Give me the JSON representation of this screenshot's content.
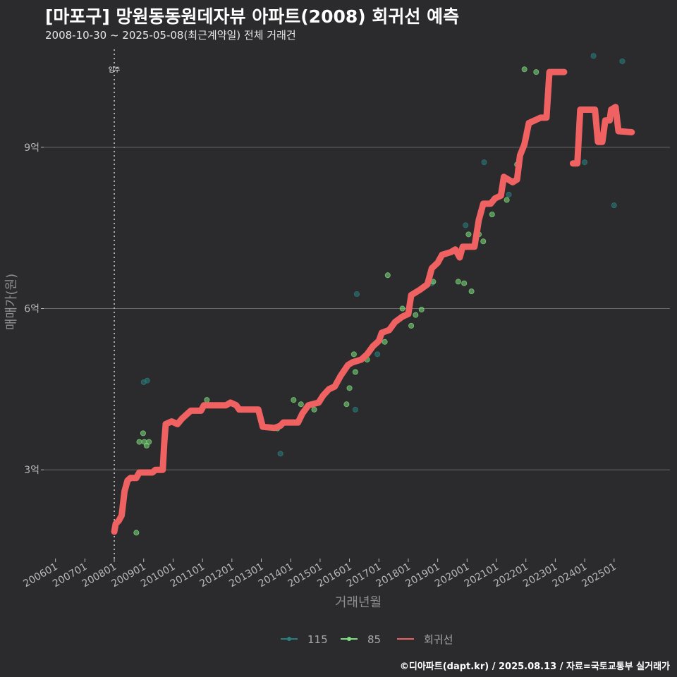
{
  "chart_data": {
    "type": "scatter",
    "title": "[마포구] 망원동동원데자뷰 아파트(2008) 회귀선 예측",
    "subtitle": "2008-10-30 ~ 2025-05-08(최근계약일) 전체 거래건",
    "xlabel": "거래년월",
    "ylabel": "매매가(원)",
    "caption": "©디아파트(dapt.kr) / 2025.08.13 / 자료=국토교통부 실거래가",
    "xlim": [
      2005.6,
      2026.9
    ],
    "ylim": [
      1.35,
      10.9
    ],
    "x_ticks": [
      {
        "v": 2006.0,
        "label": "200601"
      },
      {
        "v": 2007.0,
        "label": "200701"
      },
      {
        "v": 2008.0,
        "label": "200801"
      },
      {
        "v": 2009.0,
        "label": "200901"
      },
      {
        "v": 2010.0,
        "label": "201001"
      },
      {
        "v": 2011.0,
        "label": "201101"
      },
      {
        "v": 2012.0,
        "label": "201201"
      },
      {
        "v": 2013.0,
        "label": "201301"
      },
      {
        "v": 2014.0,
        "label": "201401"
      },
      {
        "v": 2015.0,
        "label": "201501"
      },
      {
        "v": 2016.0,
        "label": "201601"
      },
      {
        "v": 2017.0,
        "label": "201701"
      },
      {
        "v": 2018.0,
        "label": "201801"
      },
      {
        "v": 2019.0,
        "label": "201901"
      },
      {
        "v": 2020.0,
        "label": "202001"
      },
      {
        "v": 2021.0,
        "label": "202101"
      },
      {
        "v": 2022.0,
        "label": "202201"
      },
      {
        "v": 2023.0,
        "label": "202301"
      },
      {
        "v": 2024.0,
        "label": "202401"
      },
      {
        "v": 2025.0,
        "label": "202501"
      }
    ],
    "y_ticks": [
      {
        "v": 3,
        "label": "3억"
      },
      {
        "v": 6,
        "label": "6억"
      },
      {
        "v": 9,
        "label": "9억"
      }
    ],
    "annotation": {
      "x": 2008.0,
      "label": "입주"
    },
    "legend": [
      {
        "name": "115",
        "color": "#2a7f7f"
      },
      {
        "name": "85",
        "color": "#7ee07e"
      },
      {
        "name": "회귀선",
        "color": "#f06262"
      }
    ],
    "series": [
      {
        "name": "115",
        "color": "#2a7f7f",
        "points": [
          [
            2009.0,
            4.63
          ],
          [
            2009.12,
            4.66
          ],
          [
            2016.25,
            6.27
          ],
          [
            2016.2,
            4.12
          ],
          [
            2019.95,
            7.55
          ],
          [
            2020.58,
            8.72
          ],
          [
            2021.42,
            8.12
          ],
          [
            2024.3,
            10.7
          ],
          [
            2025.28,
            10.6
          ],
          [
            2025.0,
            7.92
          ],
          [
            2024.0,
            8.72
          ],
          [
            2018.8,
            6.47
          ],
          [
            2013.65,
            3.3
          ],
          [
            2016.95,
            5.15
          ]
        ]
      },
      {
        "name": "85",
        "color": "#7ee07e",
        "points": [
          [
            2008.75,
            1.83
          ],
          [
            2008.85,
            3.52
          ],
          [
            2008.98,
            3.68
          ],
          [
            2009.02,
            3.52
          ],
          [
            2009.1,
            3.45
          ],
          [
            2009.18,
            3.52
          ],
          [
            2011.15,
            4.3
          ],
          [
            2013.55,
            3.77
          ],
          [
            2014.1,
            4.3
          ],
          [
            2014.35,
            4.22
          ],
          [
            2014.8,
            4.12
          ],
          [
            2015.9,
            4.22
          ],
          [
            2016.0,
            4.52
          ],
          [
            2016.15,
            5.15
          ],
          [
            2016.2,
            4.82
          ],
          [
            2016.6,
            5.05
          ],
          [
            2017.2,
            5.38
          ],
          [
            2017.3,
            6.62
          ],
          [
            2017.8,
            6.0
          ],
          [
            2017.95,
            5.88
          ],
          [
            2018.1,
            5.68
          ],
          [
            2018.25,
            5.88
          ],
          [
            2018.45,
            5.98
          ],
          [
            2018.85,
            6.5
          ],
          [
            2019.7,
            6.5
          ],
          [
            2019.9,
            6.47
          ],
          [
            2020.05,
            7.38
          ],
          [
            2020.15,
            6.32
          ],
          [
            2020.4,
            7.38
          ],
          [
            2020.55,
            7.25
          ],
          [
            2020.85,
            7.75
          ],
          [
            2021.35,
            8.02
          ],
          [
            2021.7,
            8.68
          ],
          [
            2021.95,
            10.45
          ],
          [
            2022.35,
            10.4
          ]
        ]
      },
      {
        "name": "회귀선",
        "color": "#f06262",
        "segments": [
          [
            [
              2008.0,
              1.85
            ],
            [
              2008.05,
              2.0
            ],
            [
              2008.15,
              2.05
            ],
            [
              2008.25,
              2.15
            ],
            [
              2008.35,
              2.6
            ],
            [
              2008.45,
              2.8
            ],
            [
              2008.55,
              2.85
            ],
            [
              2008.75,
              2.85
            ],
            [
              2008.85,
              2.95
            ],
            [
              2009.3,
              2.95
            ],
            [
              2009.4,
              3.0
            ],
            [
              2009.65,
              3.0
            ],
            [
              2009.7,
              3.5
            ],
            [
              2009.75,
              3.85
            ],
            [
              2009.95,
              3.9
            ],
            [
              2010.15,
              3.85
            ],
            [
              2010.3,
              3.95
            ],
            [
              2010.5,
              4.05
            ],
            [
              2010.6,
              4.1
            ],
            [
              2010.95,
              4.1
            ],
            [
              2011.05,
              4.2
            ],
            [
              2011.8,
              4.2
            ],
            [
              2011.95,
              4.25
            ],
            [
              2012.15,
              4.2
            ],
            [
              2012.25,
              4.12
            ],
            [
              2012.9,
              4.12
            ],
            [
              2013.05,
              3.8
            ],
            [
              2013.45,
              3.78
            ],
            [
              2013.65,
              3.82
            ],
            [
              2013.75,
              3.88
            ],
            [
              2014.25,
              3.88
            ],
            [
              2014.4,
              4.05
            ],
            [
              2014.6,
              4.2
            ],
            [
              2014.95,
              4.25
            ],
            [
              2015.1,
              4.38
            ],
            [
              2015.3,
              4.5
            ],
            [
              2015.5,
              4.55
            ],
            [
              2015.7,
              4.75
            ],
            [
              2015.95,
              4.95
            ],
            [
              2016.1,
              5.0
            ],
            [
              2016.4,
              5.05
            ],
            [
              2016.6,
              5.15
            ],
            [
              2016.8,
              5.3
            ],
            [
              2017.0,
              5.4
            ],
            [
              2017.1,
              5.55
            ],
            [
              2017.35,
              5.6
            ],
            [
              2017.55,
              5.75
            ],
            [
              2017.8,
              5.85
            ],
            [
              2018.0,
              5.9
            ],
            [
              2018.1,
              6.25
            ],
            [
              2018.4,
              6.35
            ],
            [
              2018.65,
              6.45
            ],
            [
              2018.8,
              6.75
            ],
            [
              2019.0,
              6.85
            ],
            [
              2019.15,
              7.0
            ],
            [
              2019.45,
              7.05
            ],
            [
              2019.6,
              7.1
            ],
            [
              2019.75,
              6.95
            ],
            [
              2019.85,
              7.15
            ],
            [
              2020.25,
              7.15
            ],
            [
              2020.4,
              7.65
            ],
            [
              2020.55,
              7.95
            ],
            [
              2020.8,
              7.95
            ],
            [
              2020.95,
              8.05
            ],
            [
              2021.15,
              8.1
            ],
            [
              2021.25,
              8.45
            ],
            [
              2021.55,
              8.35
            ],
            [
              2021.7,
              8.4
            ],
            [
              2021.8,
              8.85
            ],
            [
              2021.95,
              9.05
            ],
            [
              2022.1,
              9.45
            ],
            [
              2022.5,
              9.55
            ],
            [
              2022.7,
              9.55
            ],
            [
              2022.8,
              10.4
            ],
            [
              2023.3,
              10.4
            ]
          ],
          [
            [
              2023.6,
              8.7
            ],
            [
              2023.75,
              8.7
            ],
            [
              2023.85,
              9.7
            ],
            [
              2024.35,
              9.7
            ],
            [
              2024.45,
              9.1
            ],
            [
              2024.6,
              9.1
            ],
            [
              2024.7,
              9.5
            ],
            [
              2024.85,
              9.5
            ],
            [
              2024.9,
              9.7
            ],
            [
              2025.05,
              9.75
            ],
            [
              2025.15,
              9.3
            ],
            [
              2025.6,
              9.28
            ]
          ]
        ]
      }
    ]
  }
}
